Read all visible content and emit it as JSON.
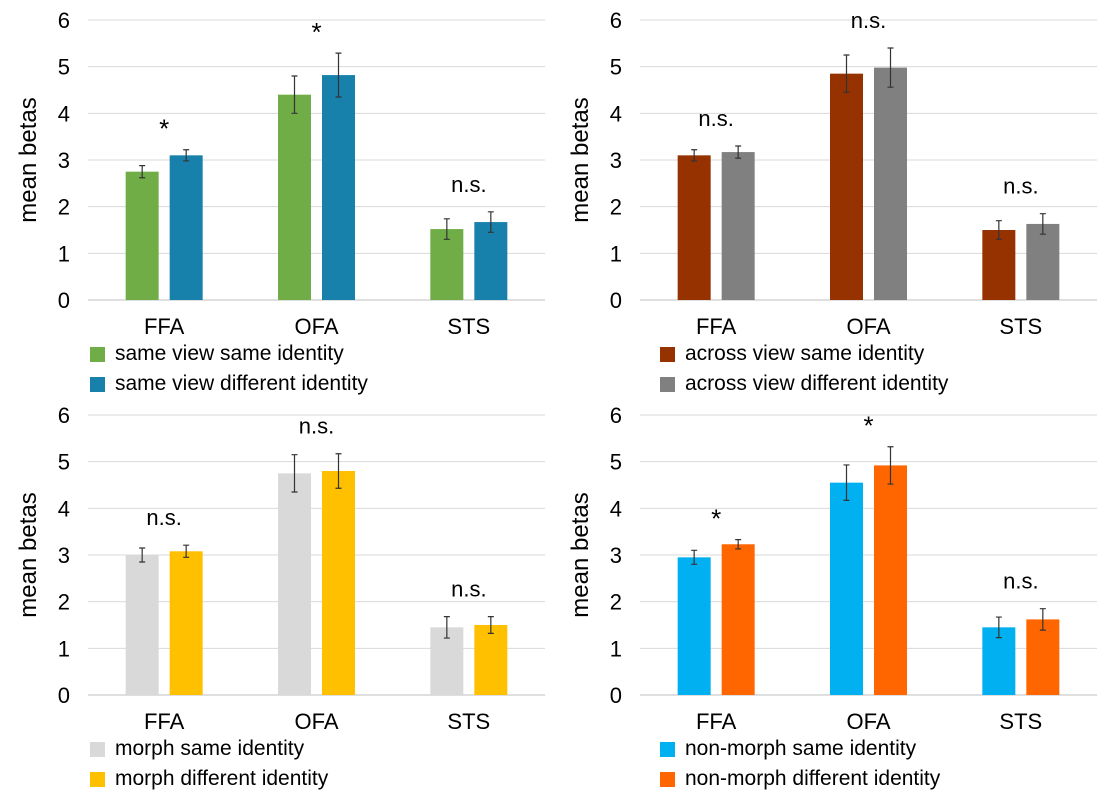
{
  "chart_data": [
    {
      "type": "bar",
      "ylabel": "mean betas",
      "ylim": [
        0,
        6
      ],
      "yticks": [
        0,
        1,
        2,
        3,
        4,
        5,
        6
      ],
      "grid": true,
      "legend_position": "bottom-left",
      "categories": [
        "FFA",
        "OFA",
        "STS"
      ],
      "series": [
        {
          "name": "same view same identity",
          "color": "#70ad47",
          "values": [
            2.75,
            4.4,
            1.52
          ],
          "errors": [
            0.13,
            0.4,
            0.22
          ]
        },
        {
          "name": "same view different identity",
          "color": "#1781ac",
          "values": [
            3.1,
            4.82,
            1.67
          ],
          "errors": [
            0.12,
            0.47,
            0.22
          ]
        }
      ],
      "annotations": [
        "*",
        "*",
        "n.s."
      ]
    },
    {
      "type": "bar",
      "ylabel": "mean betas",
      "ylim": [
        0,
        6
      ],
      "yticks": [
        0,
        1,
        2,
        3,
        4,
        5,
        6
      ],
      "grid": true,
      "legend_position": "bottom-left",
      "categories": [
        "FFA",
        "OFA",
        "STS"
      ],
      "series": [
        {
          "name": "across view same identity",
          "color": "#963200",
          "values": [
            3.1,
            4.85,
            1.5
          ],
          "errors": [
            0.12,
            0.4,
            0.2
          ]
        },
        {
          "name": "across view different identity",
          "color": "#808080",
          "values": [
            3.17,
            4.98,
            1.63
          ],
          "errors": [
            0.13,
            0.42,
            0.22
          ]
        }
      ],
      "annotations": [
        "n.s.",
        "n.s.",
        "n.s."
      ]
    },
    {
      "type": "bar",
      "ylabel": "mean betas",
      "ylim": [
        0,
        6
      ],
      "yticks": [
        0,
        1,
        2,
        3,
        4,
        5,
        6
      ],
      "grid": true,
      "legend_position": "bottom-left",
      "categories": [
        "FFA",
        "OFA",
        "STS"
      ],
      "series": [
        {
          "name": "morph same identity",
          "color": "#d9d9d9",
          "values": [
            3.0,
            4.75,
            1.45
          ],
          "errors": [
            0.15,
            0.4,
            0.23
          ]
        },
        {
          "name": "morph different identity",
          "color": "#ffc000",
          "values": [
            3.08,
            4.8,
            1.5
          ],
          "errors": [
            0.13,
            0.37,
            0.18
          ]
        }
      ],
      "annotations": [
        "n.s.",
        "n.s.",
        "n.s."
      ]
    },
    {
      "type": "bar",
      "ylabel": "mean betas",
      "ylim": [
        0,
        6
      ],
      "yticks": [
        0,
        1,
        2,
        3,
        4,
        5,
        6
      ],
      "grid": true,
      "legend_position": "bottom-left",
      "categories": [
        "FFA",
        "OFA",
        "STS"
      ],
      "series": [
        {
          "name": "non-morph same identity",
          "color": "#00b0f0",
          "values": [
            2.95,
            4.55,
            1.45
          ],
          "errors": [
            0.15,
            0.38,
            0.22
          ]
        },
        {
          "name": "non-morph different identity",
          "color": "#ff6600",
          "values": [
            3.23,
            4.92,
            1.62
          ],
          "errors": [
            0.1,
            0.4,
            0.23
          ]
        }
      ],
      "annotations": [
        "*",
        "*",
        "n.s."
      ]
    }
  ]
}
